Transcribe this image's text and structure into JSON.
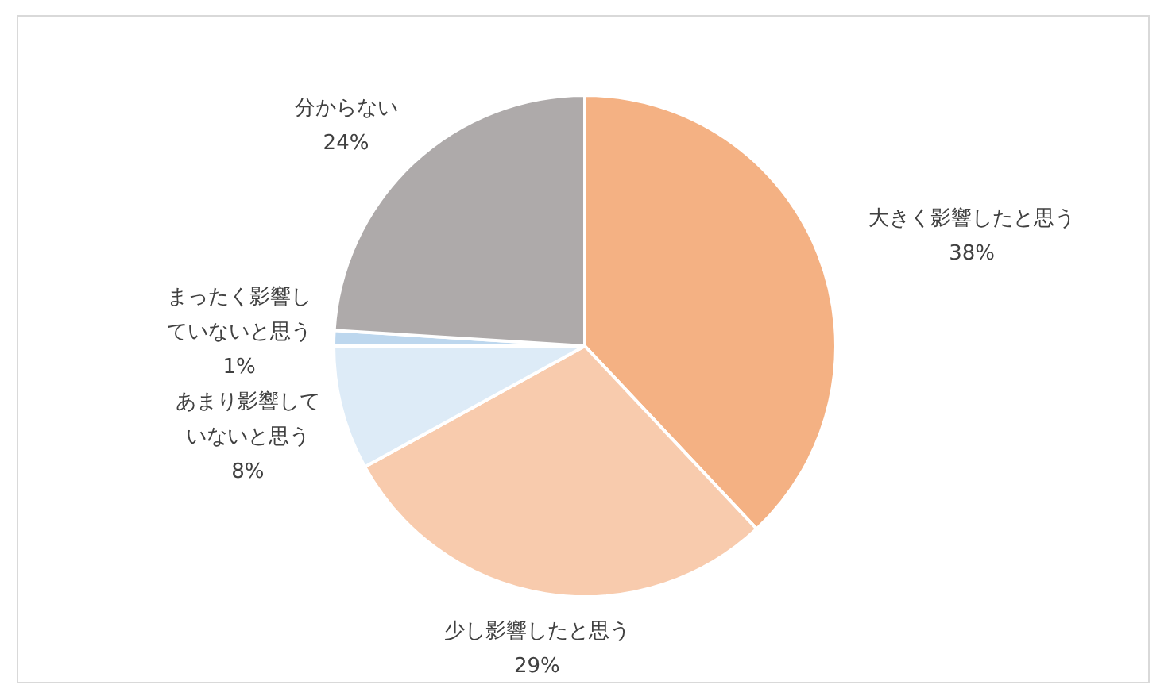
{
  "chart_data": {
    "type": "pie",
    "categories": [
      "大きく影響したと思う",
      "少し影響したと思う",
      "あまり影響していないと思う",
      "まったく影響していないと思う",
      "分からない"
    ],
    "values": [
      38,
      29,
      8,
      1,
      24
    ],
    "value_labels": [
      "38%",
      "29%",
      "8%",
      "1%",
      "24%"
    ],
    "colors": [
      "#f4b183",
      "#f8cbad",
      "#ddebf7",
      "#bdd7ee",
      "#aeaaaa"
    ]
  }
}
